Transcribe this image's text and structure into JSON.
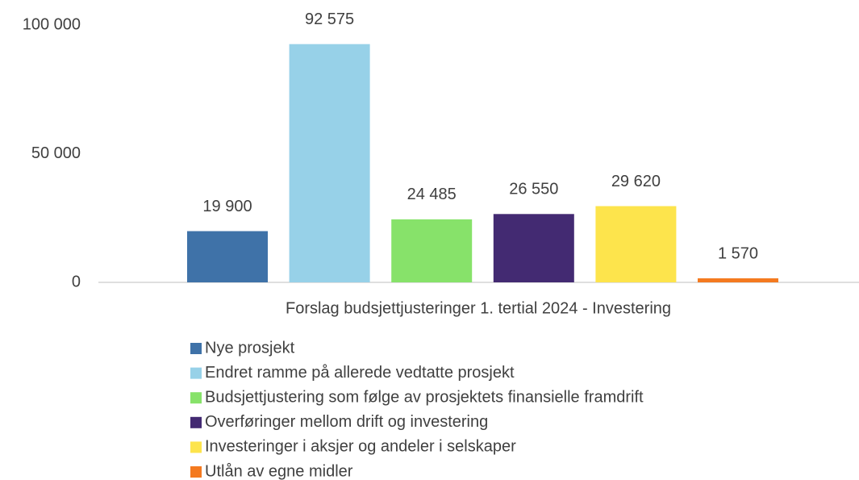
{
  "chart_data": {
    "type": "bar",
    "categories": [
      "Forslag budsjettjusteringer 1. tertial 2024 - Investering"
    ],
    "series": [
      {
        "name": "Nye prosjekt",
        "color": "#3f72a8",
        "values": [
          19900
        ],
        "value_labels": [
          "19 900"
        ]
      },
      {
        "name": "Endret ramme på allerede vedtatte prosjekt",
        "color": "#97d1e8",
        "values": [
          92575
        ],
        "value_labels": [
          "92 575"
        ]
      },
      {
        "name": "Budsjettjustering som følge av prosjektets finansielle framdrift",
        "color": "#87e26a",
        "values": [
          24485
        ],
        "value_labels": [
          "24 485"
        ]
      },
      {
        "name": "Overføringer mellom drift og investering",
        "color": "#432a72",
        "values": [
          26550
        ],
        "value_labels": [
          "26 550"
        ]
      },
      {
        "name": "Investeringer i aksjer og andeler i selskaper",
        "color": "#fde44c",
        "values": [
          29620
        ],
        "value_labels": [
          "29 620"
        ]
      },
      {
        "name": "Utlån av egne midler",
        "color": "#f47a20",
        "values": [
          1570
        ],
        "value_labels": [
          "1 570"
        ]
      }
    ],
    "ylim": [
      0,
      100000
    ],
    "yticks": [
      0,
      {
        "value": 50000,
        "label": "50 000"
      },
      {
        "value": 100000,
        "label": "100 000"
      }
    ],
    "grid": false,
    "legend": "bottom"
  }
}
